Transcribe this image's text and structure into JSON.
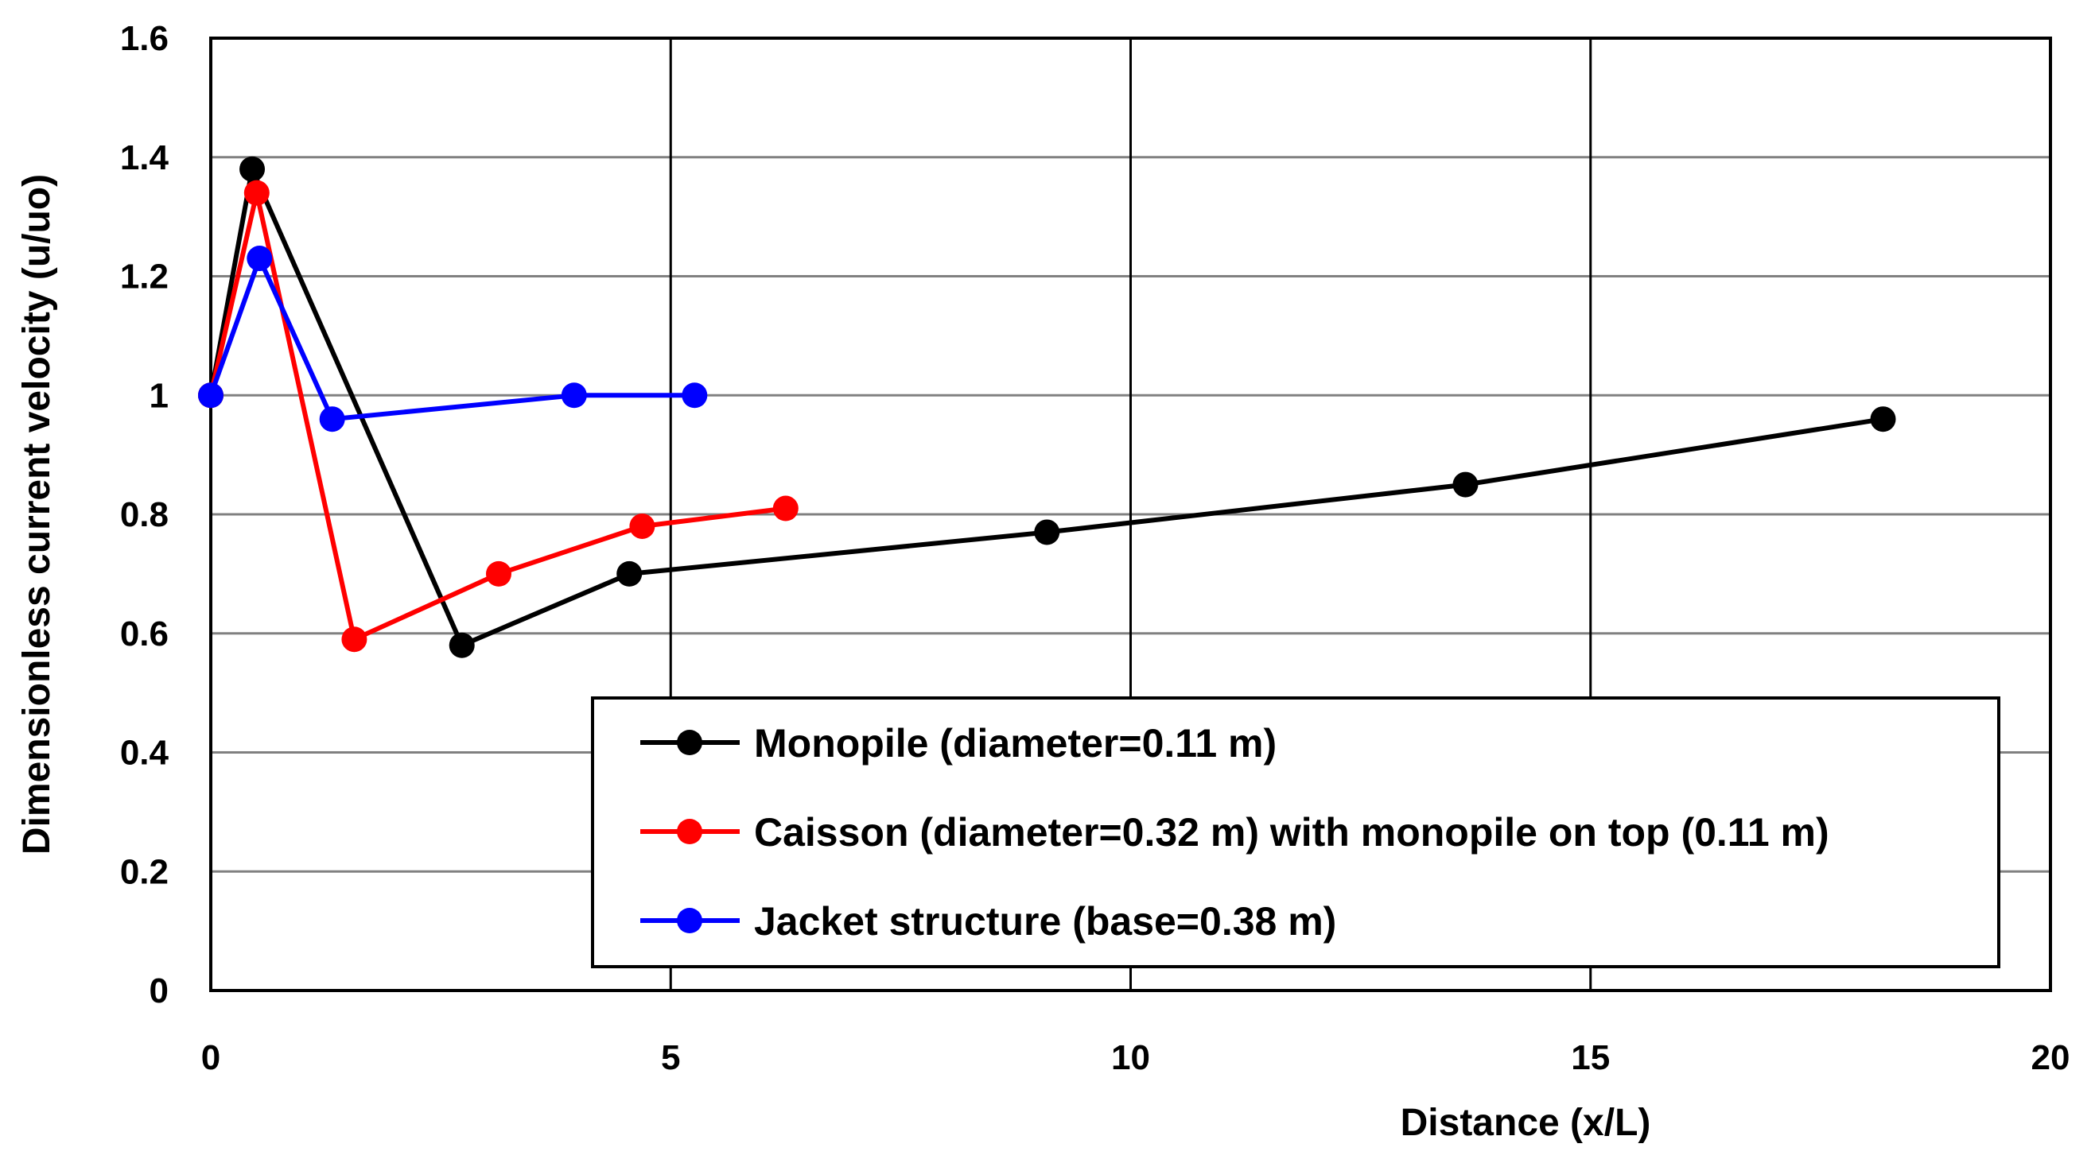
{
  "chart_data": {
    "type": "line",
    "title": "",
    "xlabel": "Distance (x/L)",
    "ylabel": "Dimensionless current velocity (u/uo)",
    "xlim": [
      0,
      20
    ],
    "ylim": [
      0,
      1.6
    ],
    "x_ticks": [
      "0",
      "5",
      "10",
      "15",
      "20"
    ],
    "y_ticks": [
      "0",
      "0.2",
      "0.4",
      "0.6",
      "0.8",
      "1",
      "1.2",
      "1.4",
      "1.6"
    ],
    "grid": true,
    "legend_position": "bottom-right",
    "series": [
      {
        "name": "Monopile (diameter=0.11 m)",
        "color": "#000000",
        "x": [
          0,
          0.45,
          2.73,
          4.55,
          9.09,
          13.64,
          18.18
        ],
        "y": [
          1.0,
          1.38,
          0.58,
          0.7,
          0.77,
          0.85,
          0.96
        ]
      },
      {
        "name": "Caisson (diameter=0.32 m) with monopile on top (0.11 m)",
        "color": "#ff0000",
        "x": [
          0,
          0.5,
          1.56,
          3.13,
          4.69,
          6.25
        ],
        "y": [
          1.0,
          1.34,
          0.59,
          0.7,
          0.78,
          0.81
        ]
      },
      {
        "name": "Jacket structure (base=0.38 m)",
        "color": "#0000ff",
        "x": [
          0,
          0.53,
          1.32,
          3.95,
          5.26
        ],
        "y": [
          1.0,
          1.23,
          0.96,
          1.0,
          1.0
        ]
      }
    ]
  }
}
